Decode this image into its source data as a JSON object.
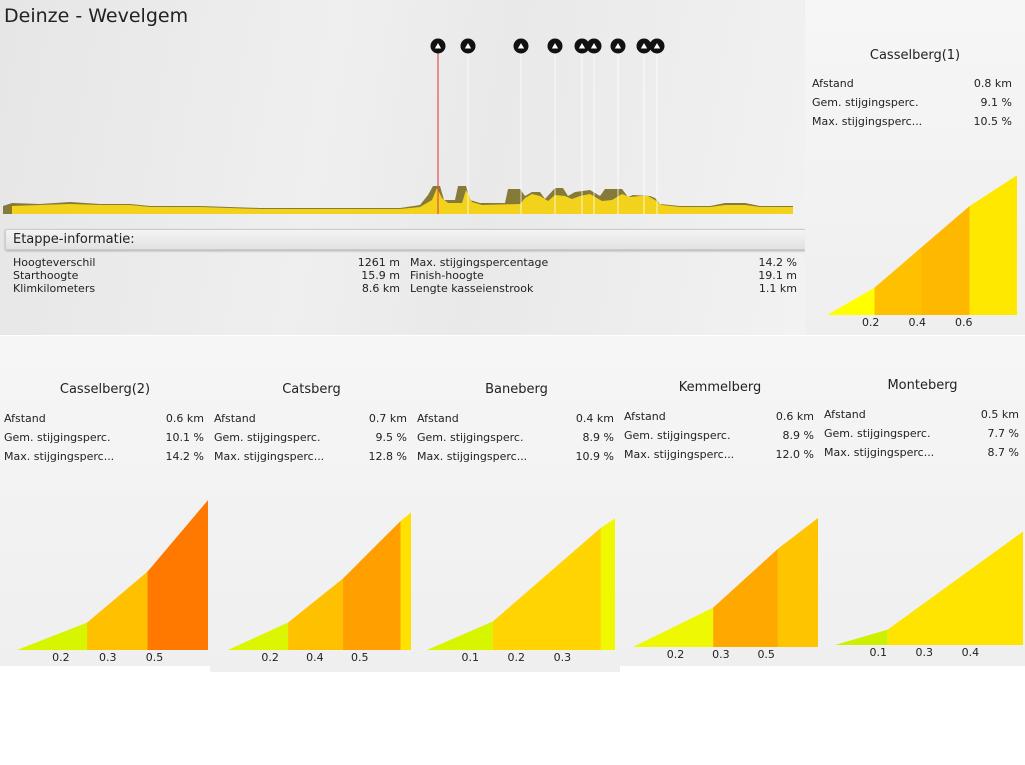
{
  "stage": {
    "title": "Deinze - Wevelgem"
  },
  "info": {
    "header": "Etappe-informatie:",
    "left": [
      {
        "label": "Hoogteverschil",
        "value": "1261 m"
      },
      {
        "label": "Starthoogte",
        "value": "15.9 m"
      },
      {
        "label": "Klimkilometers",
        "value": "8.6 km"
      }
    ],
    "right": [
      {
        "label": "Max. stijgingspercentage",
        "value": "14.2 %"
      },
      {
        "label": "Finish-hoogte",
        "value": "19.1 m"
      },
      {
        "label": "Lengte kasseienstrook",
        "value": "1.1 km"
      }
    ]
  },
  "marker_icon": "cobblestone-climb-icon",
  "marker_count": 9,
  "climbs": [
    {
      "name": "Casselberg(1)",
      "stats": [
        {
          "label": "Afstand",
          "value": "0.8 km"
        },
        {
          "label": "Gem. stijgingsperc.",
          "value": "9.1 %"
        },
        {
          "label": "Max. stijgingsperc...",
          "value": "10.5 %"
        }
      ],
      "ticks": [
        "0.2",
        "0.4",
        "0.6"
      ],
      "segments": [
        {
          "km": 0.2,
          "grad": 6.9,
          "color": "#ffff00"
        },
        {
          "km": 0.2,
          "grad": 10.3,
          "color": "#ffc000"
        },
        {
          "km": 0.2,
          "grad": 10.3,
          "color": "#ffb800"
        },
        {
          "km": 0.2,
          "grad": 7.8,
          "color": "#ffe800"
        }
      ]
    },
    {
      "name": "Casselberg(2)",
      "stats": [
        {
          "label": "Afstand",
          "value": "0.6 km"
        },
        {
          "label": "Gem. stijgingsperc.",
          "value": "10.1 %"
        },
        {
          "label": "Max. stijgingsperc...",
          "value": "14.2 %"
        }
      ],
      "ticks": [
        "0.2",
        "0.3",
        "0.5"
      ],
      "segments": [
        {
          "km": 0.22,
          "grad": 4.7,
          "color": "#d8f500"
        },
        {
          "km": 0.19,
          "grad": 10.1,
          "color": "#ffc000"
        },
        {
          "km": 0.19,
          "grad": 14.2,
          "color": "#ff7800"
        }
      ]
    },
    {
      "name": "Catsberg",
      "stats": [
        {
          "label": "Afstand",
          "value": "0.7 km"
        },
        {
          "label": "Gem. stijgingsperc.",
          "value": "9.5 %"
        },
        {
          "label": "Max. stijgingsperc...",
          "value": "12.8 %"
        }
      ],
      "ticks": [
        "0.2",
        "0.4",
        "0.5"
      ],
      "segments": [
        {
          "km": 0.23,
          "grad": 5.5,
          "color": "#dcf500"
        },
        {
          "km": 0.21,
          "grad": 9.6,
          "color": "#ffc000"
        },
        {
          "km": 0.22,
          "grad": 12.0,
          "color": "#ffa000"
        },
        {
          "km": 0.04,
          "grad": 9.8,
          "color": "#ffe000"
        }
      ]
    },
    {
      "name": "Baneberg",
      "stats": [
        {
          "label": "Afstand",
          "value": "0.4 km"
        },
        {
          "label": "Gem. stijgingsperc.",
          "value": "8.9 %"
        },
        {
          "label": "Max. stijgingsperc...",
          "value": "10.9 %"
        }
      ],
      "ticks": [
        "0.1",
        "0.2",
        "0.3"
      ],
      "segments": [
        {
          "km": 0.14,
          "grad": 5.2,
          "color": "#d8f500"
        },
        {
          "km": 0.23,
          "grad": 10.4,
          "color": "#ffd400"
        },
        {
          "km": 0.03,
          "grad": 8.0,
          "color": "#f0f800"
        }
      ]
    },
    {
      "name": "Kemmelberg",
      "stats": [
        {
          "label": "Afstand",
          "value": "0.6 km"
        },
        {
          "label": "Gem. stijgingsperc.",
          "value": "8.9 %"
        },
        {
          "label": "Max. stijgingsperc...",
          "value": "12.0 %"
        }
      ],
      "ticks": [
        "0.2",
        "0.3",
        "0.5"
      ],
      "segments": [
        {
          "km": 0.26,
          "grad": 5.9,
          "color": "#eef800"
        },
        {
          "km": 0.21,
          "grad": 10.9,
          "color": "#ffa800"
        },
        {
          "km": 0.13,
          "grad": 9.2,
          "color": "#ffc400"
        }
      ]
    },
    {
      "name": "Monteberg",
      "stats": [
        {
          "label": "Afstand",
          "value": "0.5 km"
        },
        {
          "label": "Gem. stijgingsperc.",
          "value": "7.7 %"
        },
        {
          "label": "Max. stijgingsperc...",
          "value": "8.7 %"
        }
      ],
      "ticks": [
        "0.1",
        "0.3",
        "0.4"
      ],
      "segments": [
        {
          "km": 0.14,
          "grad": 3.5,
          "color": "#ccf000"
        },
        {
          "km": 0.36,
          "grad": 8.7,
          "color": "#ffe400"
        }
      ]
    }
  ]
}
